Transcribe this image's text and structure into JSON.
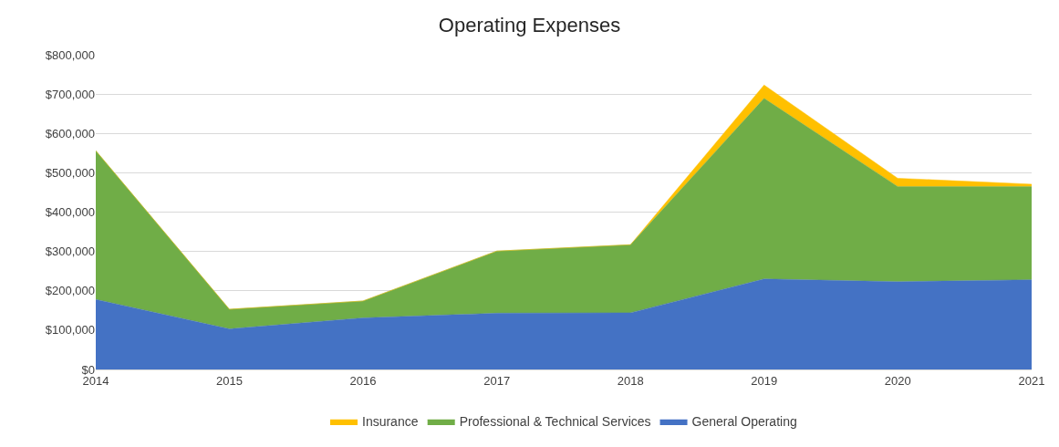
{
  "chart_data": {
    "type": "area",
    "title": "Operating Expenses",
    "stacked": true,
    "x": [
      "2014",
      "2015",
      "2016",
      "2017",
      "2018",
      "2019",
      "2020",
      "2021"
    ],
    "series": [
      {
        "name": "General Operating",
        "color": "#4472c4",
        "values": [
          178000,
          103000,
          131000,
          143000,
          144000,
          230000,
          223000,
          228000
        ]
      },
      {
        "name": "Professional & Technical Services",
        "color": "#70ad47",
        "values": [
          378000,
          50000,
          43000,
          158000,
          173000,
          459000,
          242000,
          237000
        ]
      },
      {
        "name": "Insurance",
        "color": "#ffc000",
        "values": [
          0,
          0,
          0,
          0,
          0,
          34000,
          21000,
          6000
        ]
      }
    ],
    "ylim": [
      0,
      800000
    ],
    "yticks": [
      {
        "value": 0,
        "label": "$0"
      },
      {
        "value": 100000,
        "label": "$100,000"
      },
      {
        "value": 200000,
        "label": "$200,000"
      },
      {
        "value": 300000,
        "label": "$300,000"
      },
      {
        "value": 400000,
        "label": "$400,000"
      },
      {
        "value": 500000,
        "label": "$500,000"
      },
      {
        "value": 600000,
        "label": "$600,000"
      },
      {
        "value": 700000,
        "label": "$700,000"
      },
      {
        "value": 800000,
        "label": "$800,000"
      }
    ],
    "grid": "y",
    "legend": "bottom"
  }
}
